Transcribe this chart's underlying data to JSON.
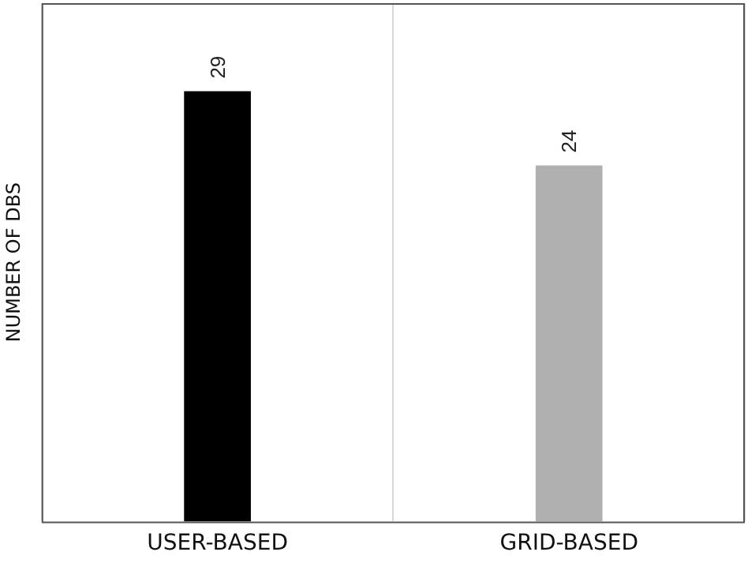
{
  "chart_data": {
    "type": "bar",
    "ylabel": "NUMBER OF DBS",
    "categories": [
      "USER-BASED",
      "GRID-BASED"
    ],
    "values": [
      29,
      24
    ],
    "colors": [
      "#000000",
      "#b0b0b0"
    ],
    "data_labels": true,
    "grid": "x",
    "legend": false
  }
}
